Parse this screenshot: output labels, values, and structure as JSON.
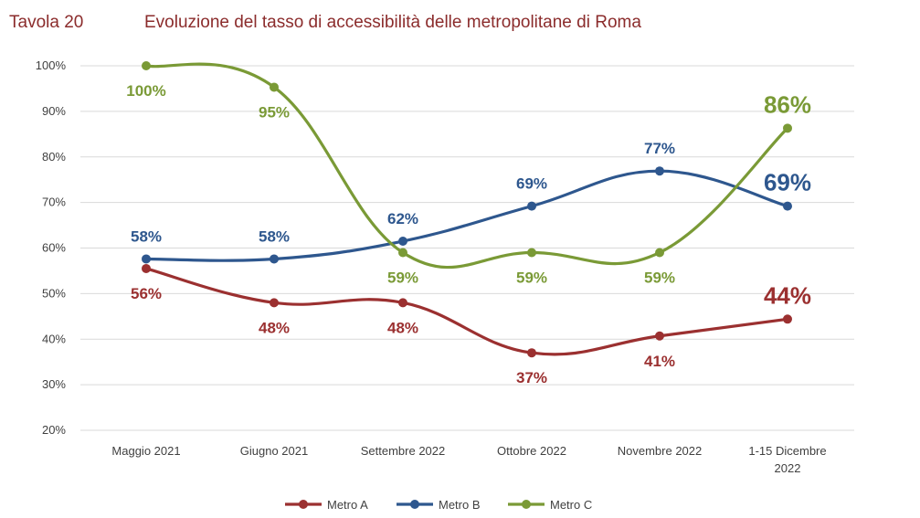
{
  "header": {
    "label": "Tavola 20",
    "title": "Evoluzione del tasso di accessibilità delle metropolitane di Roma"
  },
  "chart_data": {
    "type": "line",
    "categories": [
      [
        "Maggio 2021"
      ],
      [
        "Giugno 2021"
      ],
      [
        "Settembre 2022"
      ],
      [
        "Ottobre 2022"
      ],
      [
        "Novembre 2022"
      ],
      [
        "1-15 Dicembre",
        "2022"
      ]
    ],
    "yticks": [
      "20%",
      "30%",
      "40%",
      "50%",
      "60%",
      "70%",
      "80%",
      "90%",
      "100%"
    ],
    "ylim": [
      20,
      100
    ],
    "grid": true,
    "legend_position": "bottom",
    "series": [
      {
        "name": "Metro A",
        "color": "#9b3030",
        "values": [
          55.5,
          48,
          48,
          37,
          40.7,
          44.4
        ],
        "labels": [
          "56%",
          "48%",
          "48%",
          "37%",
          "41%",
          "44%"
        ],
        "label_pos": [
          "below",
          "below",
          "below",
          "below",
          "below",
          "above-big"
        ]
      },
      {
        "name": "Metro B",
        "color": "#2e578e",
        "values": [
          57.6,
          57.6,
          61.5,
          69.2,
          76.9,
          69.2
        ],
        "labels": [
          "58%",
          "58%",
          "62%",
          "69%",
          "77%",
          "69%"
        ],
        "label_pos": [
          "above",
          "above",
          "above",
          "above",
          "above",
          "above-big"
        ]
      },
      {
        "name": "Metro C",
        "color": "#7a9a36",
        "values": [
          100,
          95.3,
          59,
          59,
          59,
          86.3
        ],
        "labels": [
          "100%",
          "95%",
          "59%",
          "59%",
          "59%",
          "86%"
        ],
        "label_pos": [
          "below",
          "below",
          "below",
          "below",
          "below",
          "above-big"
        ]
      }
    ]
  }
}
